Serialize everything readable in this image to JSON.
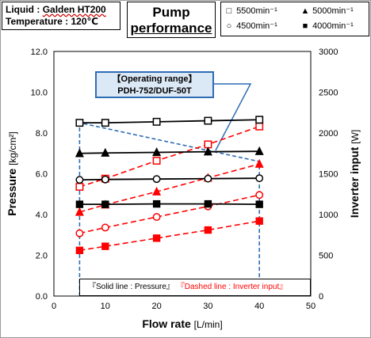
{
  "info": {
    "liquid_label": "Liquid",
    "liquid_value": "Galden HT200",
    "temp_label": "Temperature",
    "temp_value": "120℃",
    "separator": ":"
  },
  "title_line1": "Pump",
  "title_line2": "performance",
  "legend": [
    {
      "symbol": "□",
      "label": "5500min⁻¹"
    },
    {
      "symbol": "▲",
      "label": "5000min⁻¹"
    },
    {
      "symbol": "○",
      "label": "4500min⁻¹"
    },
    {
      "symbol": "■",
      "label": "4000min⁻¹"
    }
  ],
  "operating_range": {
    "line1": "【Operating range】",
    "line2": "PDH-752/DUF-50T"
  },
  "note": {
    "solid": "『Solid line : Pressure』",
    "dashed": "『Dashed line : Inverter input』"
  },
  "colors": {
    "pressure": "#000000",
    "inverter": "#ff0000",
    "operating_range": "#2e6db4",
    "label_fill": "#dbe8f5"
  },
  "chart_data": {
    "type": "line",
    "xlabel": "Flow rate",
    "xunit": "[L/min]",
    "ylabel": "Pressure",
    "yunit": "[kg/cm²]",
    "y2label": "Inverter input",
    "y2unit": "[W]",
    "xlim": [
      0,
      50
    ],
    "ylim": [
      0,
      12
    ],
    "y2lim": [
      0,
      3000
    ],
    "xticks": [
      "0",
      "10",
      "20",
      "30",
      "40",
      "50"
    ],
    "yticks": [
      "0.0",
      "2.0",
      "4.0",
      "6.0",
      "8.0",
      "10.0",
      "12.0"
    ],
    "y2ticks": [
      "0",
      "500",
      "1000",
      "1500",
      "2000",
      "2500",
      "3000"
    ],
    "grid": true,
    "x": [
      5,
      10,
      20,
      30,
      40
    ],
    "pressure_series": [
      {
        "speed": "5500min⁻¹",
        "marker": "open-square",
        "values": [
          8.5,
          8.5,
          8.55,
          8.6,
          8.65
        ]
      },
      {
        "speed": "5000min⁻¹",
        "marker": "filled-triangle",
        "values": [
          7.0,
          7.02,
          7.05,
          7.08,
          7.1
        ]
      },
      {
        "speed": "4500min⁻¹",
        "marker": "open-circle",
        "values": [
          5.7,
          5.72,
          5.74,
          5.76,
          5.78
        ]
      },
      {
        "speed": "4000min⁻¹",
        "marker": "filled-square",
        "values": [
          4.5,
          4.5,
          4.52,
          4.52,
          4.5
        ]
      }
    ],
    "inverter_series": [
      {
        "speed": "5500min⁻¹",
        "marker": "open-square",
        "values": [
          1340,
          1440,
          1660,
          1860,
          2080
        ]
      },
      {
        "speed": "5000min⁻¹",
        "marker": "filled-triangle",
        "values": [
          1030,
          1120,
          1280,
          1450,
          1620
        ]
      },
      {
        "speed": "4500min⁻¹",
        "marker": "open-circle",
        "values": [
          770,
          840,
          970,
          1100,
          1240
        ]
      },
      {
        "speed": "4000min⁻¹",
        "marker": "filled-square",
        "values": [
          560,
          610,
          710,
          810,
          920
        ]
      }
    ],
    "operating_range_boundary": [
      {
        "x": 5,
        "y": 0
      },
      {
        "x": 5,
        "y": 8.5
      },
      {
        "x": 40,
        "y": 6.6
      },
      {
        "x": 40,
        "y": 0
      }
    ]
  }
}
